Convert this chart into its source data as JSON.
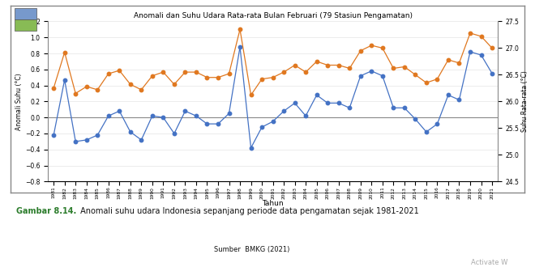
{
  "title": "Anomali dan Suhu Udara Rata-rata Bulan Februari (79 Stasiun Pengamatan)",
  "xlabel": "Tahun",
  "ylabel_left": "Anomali Suhu (°C)",
  "ylabel_right": "Suhu Rata-rata (°C)",
  "caption_bold": "Gambar 8.14.",
  "caption_text": " Anomali suhu udara Indonesia sepanjang periode data pengamatan sejak 1981-2021",
  "source": "Sumber  BMKG (2021)",
  "activate": "Activate W",
  "years": [
    1981,
    1982,
    1983,
    1984,
    1985,
    1986,
    1987,
    1988,
    1989,
    1990,
    1991,
    1992,
    1993,
    1994,
    1995,
    1996,
    1997,
    1998,
    1999,
    2000,
    2001,
    2002,
    2003,
    2004,
    2005,
    2006,
    2007,
    2008,
    2009,
    2010,
    2011,
    2012,
    2013,
    2014,
    2015,
    2016,
    2017,
    2018,
    2019,
    2020,
    2021
  ],
  "anomaly": [
    -0.22,
    0.47,
    -0.3,
    -0.28,
    -0.22,
    0.02,
    0.08,
    -0.18,
    -0.28,
    0.02,
    0.0,
    -0.2,
    0.08,
    0.02,
    -0.08,
    -0.08,
    0.05,
    0.88,
    -0.38,
    -0.12,
    -0.05,
    0.08,
    0.18,
    0.02,
    0.28,
    0.18,
    0.18,
    0.12,
    0.52,
    0.58,
    0.52,
    0.12,
    0.12,
    -0.02,
    -0.18,
    -0.08,
    0.28,
    0.22,
    0.82,
    0.78,
    0.55
  ],
  "avg_temp": [
    26.25,
    26.92,
    26.15,
    26.28,
    26.22,
    26.52,
    26.58,
    26.32,
    26.22,
    26.48,
    26.55,
    26.32,
    26.55,
    26.55,
    26.45,
    26.45,
    26.52,
    27.35,
    26.12,
    26.42,
    26.45,
    26.55,
    26.68,
    26.55,
    26.75,
    26.68,
    26.68,
    26.62,
    26.95,
    27.05,
    27.0,
    26.62,
    26.65,
    26.5,
    26.35,
    26.42,
    26.78,
    26.72,
    27.28,
    27.22,
    27.0
  ],
  "blue_color": "#4472C4",
  "orange_color": "#E07820",
  "bg_color": "#FFFFFF",
  "plot_bg": "#FFFFFF",
  "frame_color": "#AAAAAA",
  "grid_color": "#DDDDDD",
  "ylim_left": [
    -0.8,
    1.2
  ],
  "ylim_right": [
    24.5,
    27.5
  ],
  "yticks_left": [
    -0.8,
    -0.6,
    -0.4,
    -0.2,
    0.0,
    0.2,
    0.4,
    0.6,
    0.8,
    1.0,
    1.2
  ],
  "yticks_right": [
    24.5,
    25.0,
    25.5,
    26.0,
    26.5,
    27.0,
    27.5
  ]
}
